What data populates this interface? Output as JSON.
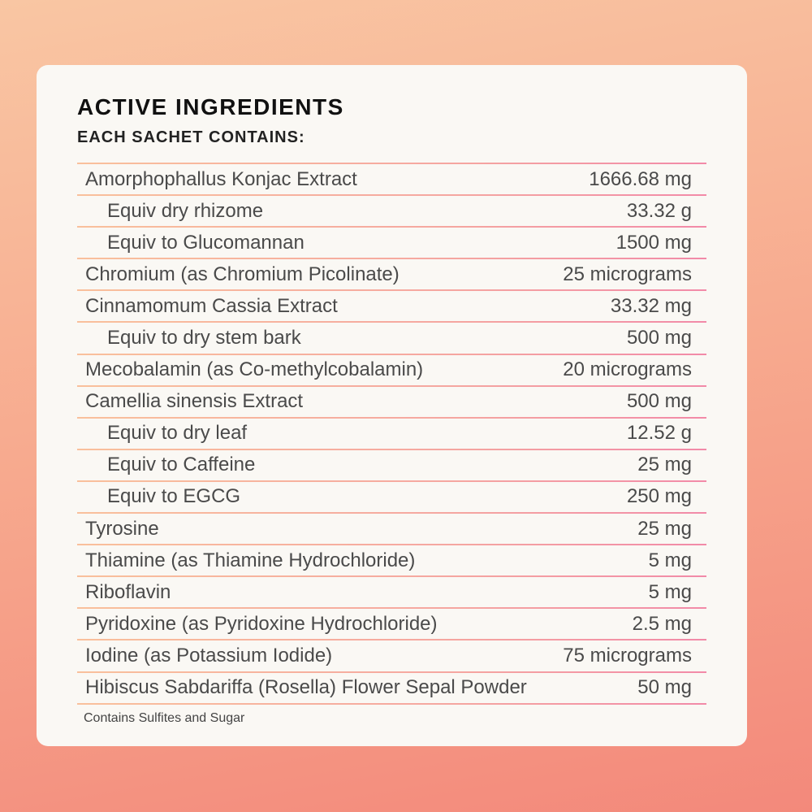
{
  "title": "ACTIVE INGREDIENTS",
  "subtitle": "EACH SACHET CONTAINS:",
  "colors": {
    "background_top": "#f9c6a3",
    "background_bottom": "#f3897b",
    "card": "#faf8f4",
    "divider_start": "#f9c09c",
    "divider_end": "#f28aa8"
  },
  "ingredients": [
    {
      "name": "Amorphophallus Konjac Extract",
      "amount": "1666.68 mg",
      "sub": false
    },
    {
      "name": "Equiv dry rhizome",
      "amount": "33.32 g",
      "sub": true
    },
    {
      "name": "Equiv to Glucomannan",
      "amount": "1500 mg",
      "sub": true
    },
    {
      "name": "Chromium (as Chromium Picolinate)",
      "amount": "25 micrograms",
      "sub": false
    },
    {
      "name": "Cinnamomum Cassia Extract",
      "amount": "33.32 mg",
      "sub": false
    },
    {
      "name": "Equiv to dry stem bark",
      "amount": "500 mg",
      "sub": true
    },
    {
      "name": "Mecobalamin (as Co-methylcobalamin)",
      "amount": "20 micrograms",
      "sub": false
    },
    {
      "name": "Camellia sinensis Extract",
      "amount": "500 mg",
      "sub": false
    },
    {
      "name": "Equiv to dry leaf",
      "amount": "12.52 g",
      "sub": true
    },
    {
      "name": "Equiv to Caffeine",
      "amount": "25 mg",
      "sub": true
    },
    {
      "name": "Equiv to EGCG",
      "amount": "250 mg",
      "sub": true
    },
    {
      "name": "Tyrosine",
      "amount": "25 mg",
      "sub": false
    },
    {
      "name": "Thiamine (as Thiamine Hydrochloride)",
      "amount": "5 mg",
      "sub": false
    },
    {
      "name": "Riboflavin",
      "amount": "5 mg",
      "sub": false
    },
    {
      "name": "Pyridoxine (as Pyridoxine Hydrochloride)",
      "amount": "2.5 mg",
      "sub": false
    },
    {
      "name": "Iodine (as Potassium Iodide)",
      "amount": "75 micrograms",
      "sub": false
    },
    {
      "name": "Hibiscus Sabdariffa (Rosella) Flower Sepal Powder",
      "amount": "50 mg",
      "sub": false
    }
  ],
  "note": "Contains Sulfites and Sugar"
}
